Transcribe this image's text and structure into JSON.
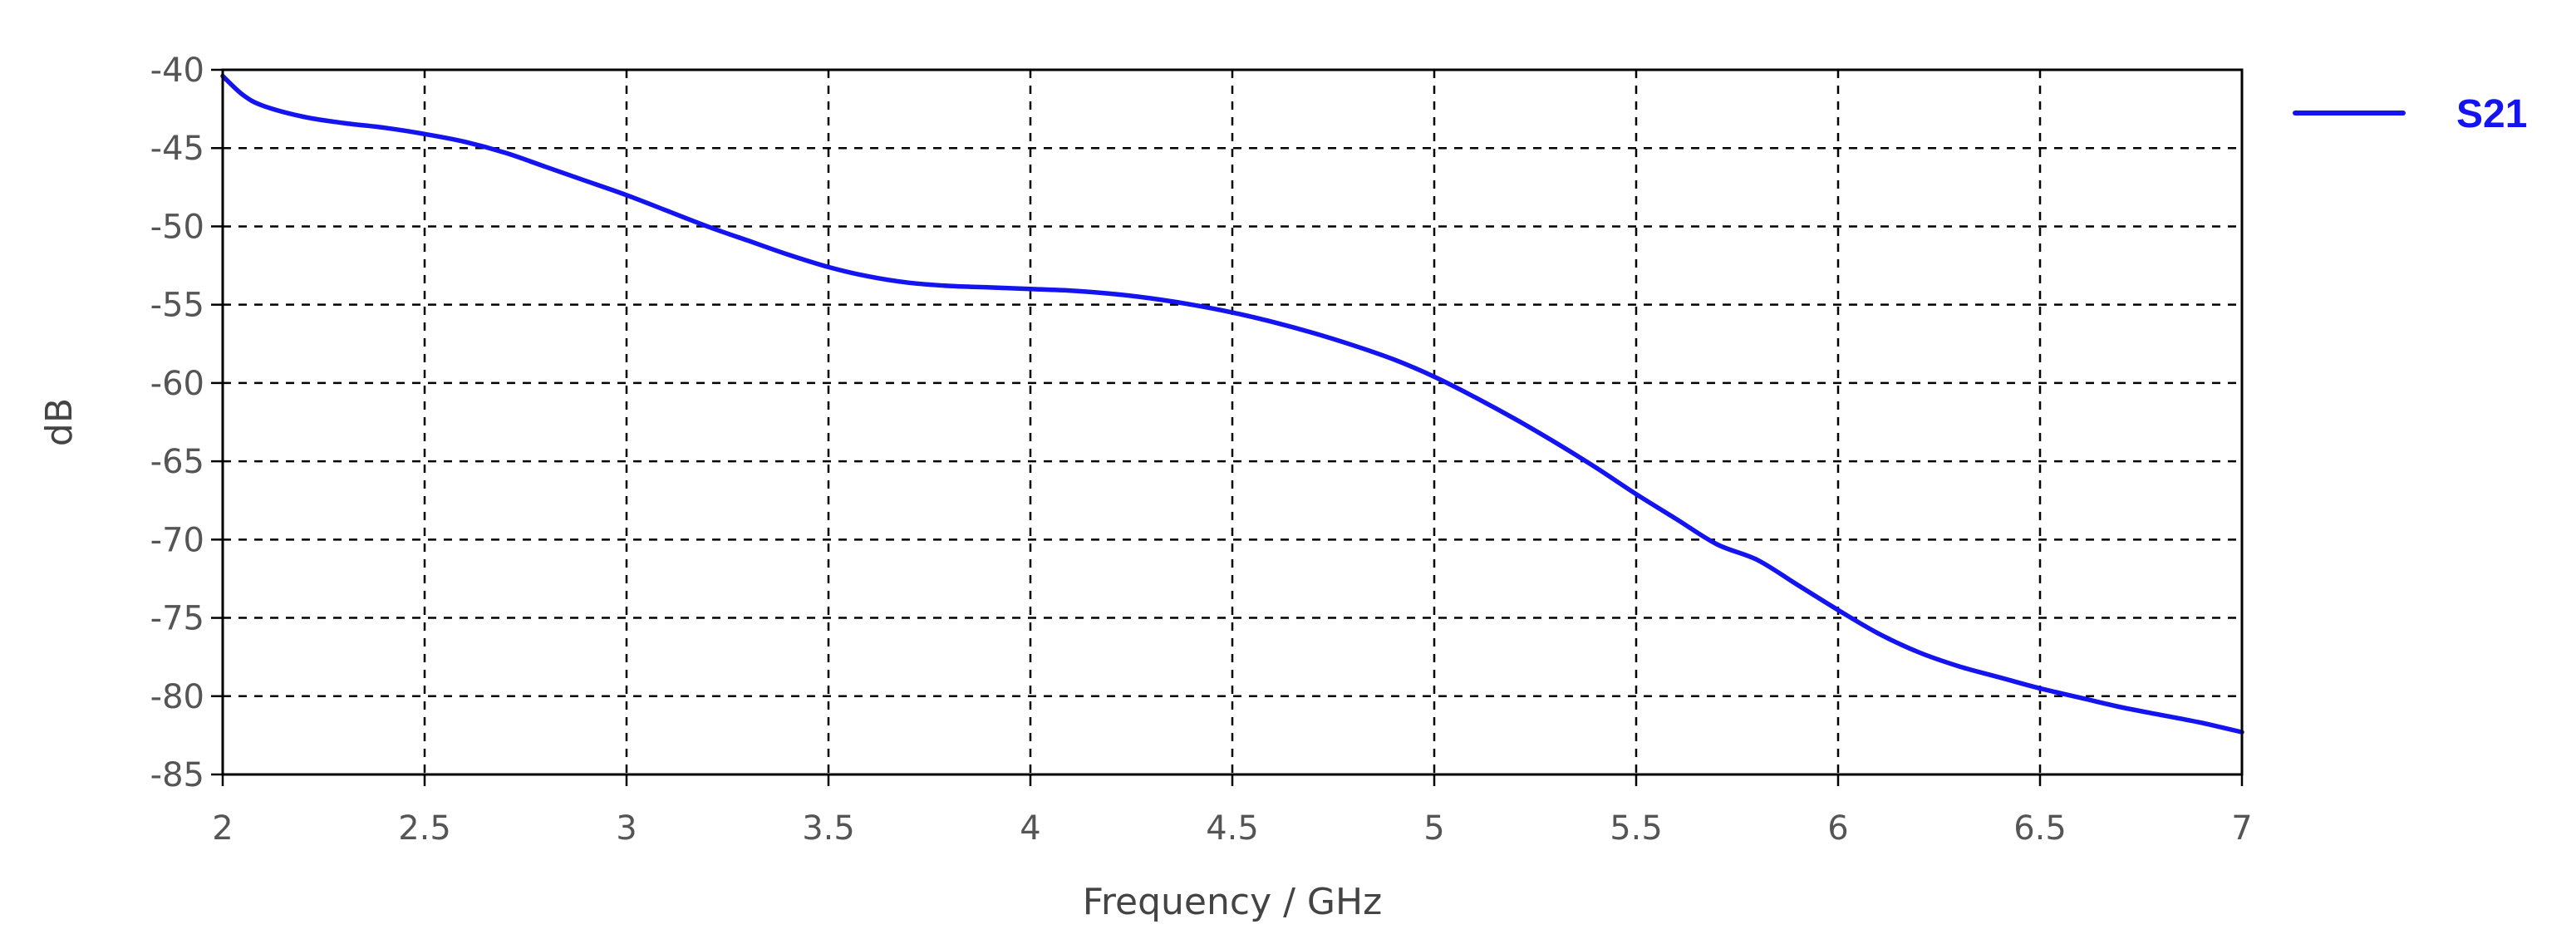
{
  "chart_data": {
    "type": "line",
    "title": "",
    "xlabel": "Frequency / GHz",
    "ylabel": "dB",
    "xlim": [
      2,
      7
    ],
    "ylim": [
      -85,
      -40
    ],
    "xticks": [
      "2",
      "2.5",
      "3",
      "3.5",
      "4",
      "4.5",
      "5",
      "5.5",
      "6",
      "6.5",
      "7"
    ],
    "yticks": [
      "-40",
      "-45",
      "-50",
      "-55",
      "-60",
      "-65",
      "-70",
      "-75",
      "-80",
      "-85"
    ],
    "grid": true,
    "legend_position": "right",
    "series": [
      {
        "name": "S21",
        "color": "#1414f0",
        "x": [
          2.0,
          2.05,
          2.1,
          2.2,
          2.3,
          2.4,
          2.5,
          2.6,
          2.7,
          2.8,
          2.9,
          3.0,
          3.1,
          3.2,
          3.3,
          3.4,
          3.5,
          3.6,
          3.7,
          3.8,
          3.9,
          4.0,
          4.1,
          4.2,
          4.3,
          4.4,
          4.5,
          4.6,
          4.7,
          4.8,
          4.9,
          5.0,
          5.1,
          5.2,
          5.3,
          5.4,
          5.5,
          5.6,
          5.7,
          5.8,
          5.9,
          6.0,
          6.1,
          6.2,
          6.3,
          6.4,
          6.5,
          6.6,
          6.7,
          6.8,
          6.9,
          7.0
        ],
        "y": [
          -40.4,
          -41.6,
          -42.3,
          -43.0,
          -43.4,
          -43.7,
          -44.1,
          -44.6,
          -45.3,
          -46.2,
          -47.1,
          -48.0,
          -49.0,
          -50.0,
          -50.9,
          -51.8,
          -52.6,
          -53.2,
          -53.6,
          -53.8,
          -53.9,
          -54.0,
          -54.1,
          -54.3,
          -54.6,
          -55.0,
          -55.5,
          -56.1,
          -56.8,
          -57.6,
          -58.5,
          -59.6,
          -60.9,
          -62.3,
          -63.8,
          -65.4,
          -67.1,
          -68.7,
          -70.3,
          -71.3,
          -72.9,
          -74.5,
          -76.0,
          -77.2,
          -78.1,
          -78.8,
          -79.5,
          -80.1,
          -80.7,
          -81.2,
          -81.7,
          -82.3
        ]
      }
    ]
  }
}
